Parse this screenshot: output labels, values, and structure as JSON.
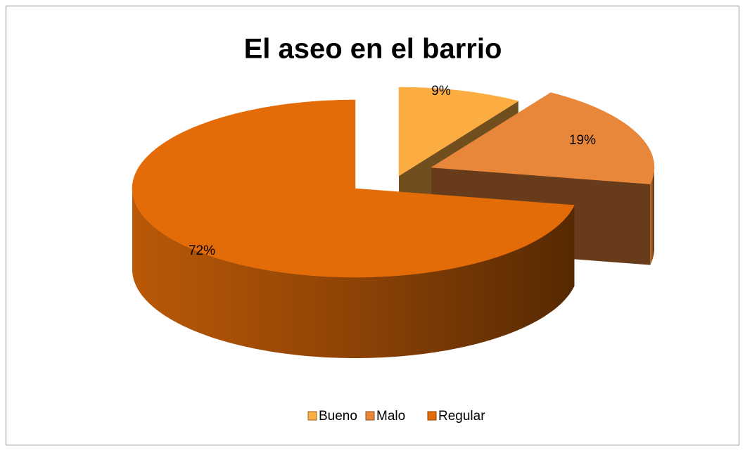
{
  "chart_data": {
    "type": "pie",
    "title": "El aseo en el barrio",
    "categories": [
      "Bueno",
      "Malo",
      "Regular"
    ],
    "values": [
      9,
      19,
      72
    ],
    "value_labels": [
      "9%",
      "19%",
      "72%"
    ],
    "colors": [
      "#fbad42",
      "#e8863a",
      "#e36c09"
    ],
    "legend": "bottom"
  }
}
